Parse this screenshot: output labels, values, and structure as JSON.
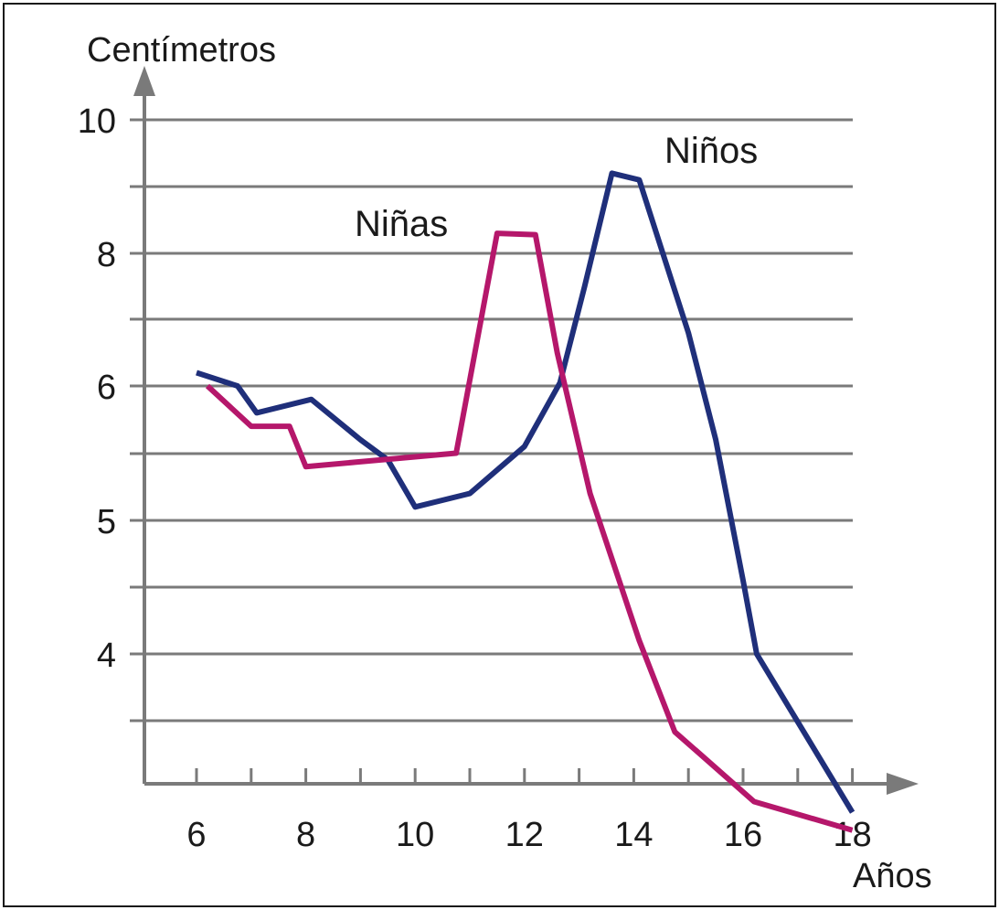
{
  "chart_data": {
    "type": "line",
    "ylabel": "Centímetros",
    "xlabel": "Años",
    "xlim": [
      5,
      19
    ],
    "ylim": [
      3,
      10
    ],
    "x_ticks": [
      6,
      8,
      10,
      12,
      14,
      16,
      18
    ],
    "x_minor_ticks": [
      7,
      9,
      11,
      13,
      15,
      17
    ],
    "y_ticks": [
      {
        "value": 4,
        "label": "4"
      },
      {
        "value": 5,
        "label": "5"
      },
      {
        "value": 6,
        "label": "6"
      },
      {
        "value": 8,
        "label": "8"
      },
      {
        "value": 10,
        "label": "10"
      }
    ],
    "grid": true,
    "series": [
      {
        "name": "Niños",
        "color": "#1f2f7a",
        "points": [
          [
            6,
            6.2
          ],
          [
            6.75,
            6.0
          ],
          [
            7.1,
            5.8
          ],
          [
            8.1,
            5.9
          ],
          [
            9,
            5.6
          ],
          [
            9.5,
            5.45
          ],
          [
            10,
            5.1
          ],
          [
            11,
            5.2
          ],
          [
            12,
            5.55
          ],
          [
            12.65,
            6.05
          ],
          [
            13.1,
            7.5
          ],
          [
            13.6,
            9.2
          ],
          [
            14.1,
            9.1
          ],
          [
            15,
            6.8
          ],
          [
            15.5,
            5.6
          ],
          [
            16,
            4.55
          ],
          [
            16.25,
            4.0
          ],
          [
            18,
            2.6
          ]
        ]
      },
      {
        "name": "Niñas",
        "color": "#b5176b",
        "points": [
          [
            6.2,
            6.0
          ],
          [
            7.0,
            5.7
          ],
          [
            7.7,
            5.7
          ],
          [
            8.0,
            5.4
          ],
          [
            10.75,
            5.5
          ],
          [
            11.5,
            8.3
          ],
          [
            12.2,
            8.28
          ],
          [
            12.6,
            6.5
          ],
          [
            13.2,
            5.2
          ],
          [
            14.1,
            4.1
          ],
          [
            14.75,
            3.4
          ],
          [
            16.2,
            2.75
          ],
          [
            18,
            2.35
          ]
        ]
      }
    ]
  }
}
